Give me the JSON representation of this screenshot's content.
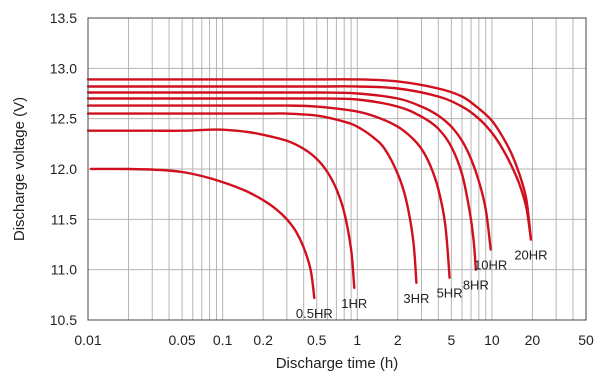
{
  "chart_data": {
    "type": "line",
    "xlabel": "Discharge time (h)",
    "ylabel": "Discharge voltage (V)",
    "x_scale": "log",
    "xlim": [
      0.01,
      50
    ],
    "ylim": [
      10.5,
      13.5
    ],
    "grid": true,
    "x_ticks": [
      {
        "value": 0.01,
        "label": "0.01"
      },
      {
        "value": 0.05,
        "label": "0.05"
      },
      {
        "value": 0.1,
        "label": "0.1"
      },
      {
        "value": 0.2,
        "label": "0.2"
      },
      {
        "value": 0.5,
        "label": "0.5"
      },
      {
        "value": 1,
        "label": "1"
      },
      {
        "value": 2,
        "label": "2"
      },
      {
        "value": 5,
        "label": "5"
      },
      {
        "value": 10,
        "label": "10"
      },
      {
        "value": 20,
        "label": "20"
      },
      {
        "value": 50,
        "label": "50"
      }
    ],
    "y_ticks": [
      {
        "value": 10.5,
        "label": "10.5"
      },
      {
        "value": 11.0,
        "label": "11.0"
      },
      {
        "value": 11.5,
        "label": "11.5"
      },
      {
        "value": 12.0,
        "label": "12.0"
      },
      {
        "value": 12.5,
        "label": "12.5"
      },
      {
        "value": 13.0,
        "label": "13.0"
      },
      {
        "value": 13.5,
        "label": "13.5"
      }
    ],
    "line_color": "#d0101e",
    "series": [
      {
        "name": "0.5HR",
        "x": [
          0.0105,
          0.02,
          0.035,
          0.05,
          0.07,
          0.1,
          0.15,
          0.2,
          0.25,
          0.3,
          0.35,
          0.4,
          0.45,
          0.48
        ],
        "y": [
          12.0,
          12.0,
          11.99,
          11.97,
          11.93,
          11.87,
          11.78,
          11.69,
          11.6,
          11.5,
          11.38,
          11.22,
          11.0,
          10.72
        ]
      },
      {
        "name": "1HR",
        "x": [
          0.01,
          0.03,
          0.05,
          0.08,
          0.1,
          0.15,
          0.2,
          0.3,
          0.4,
          0.5,
          0.6,
          0.7,
          0.8,
          0.9,
          0.95
        ],
        "y": [
          12.38,
          12.38,
          12.38,
          12.39,
          12.39,
          12.37,
          12.34,
          12.28,
          12.2,
          12.1,
          11.97,
          11.8,
          11.57,
          11.2,
          10.82
        ]
      },
      {
        "name": "3HR",
        "x": [
          0.01,
          0.05,
          0.1,
          0.2,
          0.3,
          0.5,
          0.8,
          1.0,
          1.3,
          1.6,
          2.0,
          2.3,
          2.6,
          2.75
        ],
        "y": [
          12.55,
          12.55,
          12.55,
          12.55,
          12.55,
          12.53,
          12.47,
          12.42,
          12.32,
          12.2,
          11.95,
          11.7,
          11.3,
          10.87
        ]
      },
      {
        "name": "5HR",
        "x": [
          0.01,
          0.1,
          0.3,
          0.5,
          1.0,
          1.5,
          2.0,
          2.5,
          3.0,
          3.5,
          4.0,
          4.5,
          4.85
        ],
        "y": [
          12.63,
          12.63,
          12.63,
          12.62,
          12.57,
          12.5,
          12.42,
          12.32,
          12.2,
          12.03,
          11.8,
          11.45,
          10.92
        ]
      },
      {
        "name": "8HR",
        "x": [
          0.01,
          0.1,
          0.5,
          1.0,
          2.0,
          3.0,
          4.0,
          5.0,
          6.0,
          6.8,
          7.3,
          7.6
        ],
        "y": [
          12.7,
          12.7,
          12.7,
          12.69,
          12.62,
          12.52,
          12.4,
          12.22,
          11.95,
          11.6,
          11.3,
          11.0
        ]
      },
      {
        "name": "10HR",
        "x": [
          0.01,
          0.1,
          0.5,
          1.0,
          2.0,
          3.0,
          4.0,
          5.0,
          6.0,
          7.0,
          8.0,
          9.0,
          9.8
        ],
        "y": [
          12.76,
          12.76,
          12.76,
          12.75,
          12.7,
          12.62,
          12.53,
          12.42,
          12.28,
          12.1,
          11.88,
          11.6,
          11.2
        ]
      },
      {
        "name": "",
        "x": [
          0.01,
          0.1,
          0.5,
          1.0,
          2.0,
          4.0,
          6.0,
          8.0,
          10.0,
          12.0,
          14.0,
          16.0,
          18.0,
          19.5
        ],
        "y": [
          12.82,
          12.82,
          12.82,
          12.82,
          12.8,
          12.72,
          12.62,
          12.5,
          12.36,
          12.2,
          12.03,
          11.85,
          11.62,
          11.3
        ]
      },
      {
        "name": "20HR",
        "x": [
          0.01,
          0.1,
          0.5,
          1.0,
          2.0,
          4.0,
          6.0,
          8.0,
          10.0,
          12.0,
          14.0,
          16.0,
          18.0,
          19.5
        ],
        "y": [
          12.89,
          12.89,
          12.89,
          12.89,
          12.87,
          12.8,
          12.72,
          12.6,
          12.48,
          12.32,
          12.15,
          11.95,
          11.7,
          11.3
        ]
      }
    ]
  }
}
